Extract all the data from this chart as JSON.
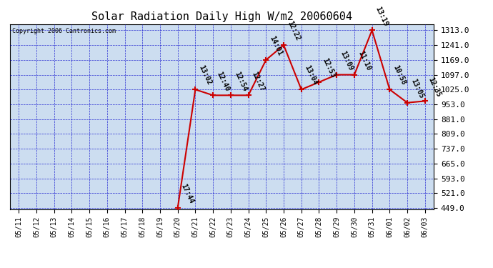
{
  "title": "Solar Radiation Daily High W/m2 20060604",
  "copyright": "Copyright 2006 Cantronics.com",
  "background_color": "#ffffff",
  "plot_background_color": "#ccddf0",
  "grid_color": "#0000cc",
  "line_color": "#cc0000",
  "marker_color": "#cc0000",
  "dates": [
    "05/11",
    "05/12",
    "05/13",
    "05/14",
    "05/15",
    "05/16",
    "05/17",
    "05/18",
    "05/19",
    "05/20",
    "05/21",
    "05/22",
    "05/23",
    "05/24",
    "05/25",
    "05/26",
    "05/27",
    "05/28",
    "05/29",
    "05/30",
    "05/31",
    "06/01",
    "06/02",
    "06/03"
  ],
  "values": [
    null,
    null,
    null,
    null,
    null,
    null,
    null,
    null,
    null,
    449.0,
    1025.0,
    997.0,
    997.0,
    997.0,
    1169.0,
    1241.0,
    1025.0,
    1061.0,
    1097.0,
    1097.0,
    1313.0,
    1025.0,
    961.0,
    969.0
  ],
  "labels": [
    null,
    null,
    null,
    null,
    null,
    null,
    null,
    null,
    null,
    "17:44",
    "13:02",
    "12:40",
    "12:54",
    "12:27",
    "14:01",
    "12:22",
    "13:04",
    "12:53",
    "13:09",
    "11:10",
    "13:19",
    "10:58",
    "13:05",
    "12:35"
  ],
  "ylim_min": 449.0,
  "ylim_max": 1313.0,
  "yticks": [
    449.0,
    521.0,
    593.0,
    665.0,
    737.0,
    809.0,
    881.0,
    953.0,
    1025.0,
    1097.0,
    1169.0,
    1241.0,
    1313.0
  ],
  "ylabel_fontsize": 8,
  "title_fontsize": 11,
  "label_fontsize": 7,
  "tick_fontsize": 7
}
